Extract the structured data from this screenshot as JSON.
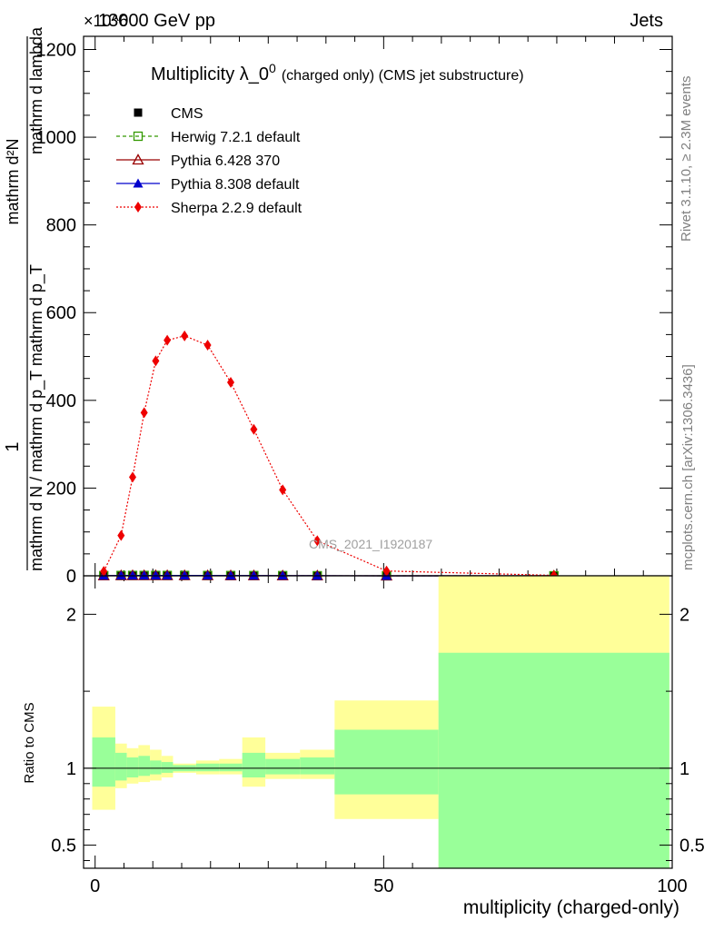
{
  "header": {
    "left_label": "13000 GeV pp",
    "right_label": "Jets",
    "exponent_label": "×10^6"
  },
  "side_labels": {
    "rivet": "Rivet 3.1.10, ≥ 2.3M events",
    "mcplots": "mcplots.cern.ch [arXiv:1306.3436]"
  },
  "watermark": "CMS_2021_I1920187",
  "chart_data": [
    {
      "type": "scatter",
      "panel": "main",
      "title_main": "Multiplicity λ_0",
      "title_sup": "0",
      "title_suffix": "(charged only) (CMS jet substructure)",
      "xlabel": "multiplicity (charged-only)",
      "ylabel_numerator": "1",
      "ylabel_denominator": "mathrm d N / mathrm d p_T mathrm d p_T",
      "ylabel_top": "mathrm d²N",
      "ylabel_top_sub": "mathrm d lambda",
      "xlim": [
        -2,
        100
      ],
      "ylim": [
        0,
        1230
      ],
      "x_ticks": [
        0,
        50,
        100
      ],
      "y_ticks": [
        0,
        200,
        400,
        600,
        800,
        1000,
        1200
      ],
      "legend_position": "top-left",
      "series": [
        {
          "name": "CMS",
          "color": "#000000",
          "marker": "filled-square",
          "x": [
            1.5,
            4.5,
            6.5,
            8.5,
            10.5,
            12.5,
            15.5,
            19.5,
            23.5,
            27.5,
            32.5,
            38.5,
            50.5,
            79.5
          ],
          "y": [
            0.4,
            0.7,
            0.8,
            0.8,
            0.8,
            0.8,
            0.8,
            0.7,
            0.6,
            0.5,
            0.4,
            0.2,
            0.05,
            0.01
          ]
        },
        {
          "name": "Herwig 7.2.1 default",
          "color": "#339900",
          "marker": "open-square",
          "line": "dashed",
          "x": [
            1.5,
            4.5,
            6.5,
            8.5,
            10.5,
            12.5,
            15.5,
            19.5,
            23.5,
            27.5,
            32.5,
            38.5,
            50.5,
            79.5
          ],
          "y": [
            0.4,
            0.7,
            0.8,
            0.8,
            0.8,
            0.8,
            0.8,
            0.7,
            0.6,
            0.5,
            0.4,
            0.2,
            0.05,
            0.01
          ]
        },
        {
          "name": "Pythia 6.428 370",
          "color": "#990000",
          "marker": "open-triangle",
          "line": "solid",
          "x": [
            1.5,
            4.5,
            6.5,
            8.5,
            10.5,
            12.5,
            15.5,
            19.5,
            23.5,
            27.5,
            32.5,
            38.5,
            50.5,
            79.5
          ],
          "y": [
            0.4,
            0.7,
            0.8,
            0.8,
            0.8,
            0.8,
            0.8,
            0.7,
            0.6,
            0.5,
            0.4,
            0.2,
            0.05,
            0.01
          ]
        },
        {
          "name": "Pythia 8.308 default",
          "color": "#0000cc",
          "marker": "filled-triangle",
          "line": "solid",
          "x": [
            1.5,
            4.5,
            6.5,
            8.5,
            10.5,
            12.5,
            15.5,
            19.5,
            23.5,
            27.5,
            32.5,
            38.5,
            50.5,
            79.5
          ],
          "y": [
            0.4,
            0.7,
            0.8,
            0.8,
            0.8,
            0.8,
            0.8,
            0.7,
            0.6,
            0.5,
            0.4,
            0.2,
            0.05,
            0.01
          ]
        },
        {
          "name": "Sherpa 2.2.9 default",
          "color": "#ee0000",
          "marker": "filled-diamond",
          "line": "dotted",
          "x": [
            1.5,
            4.5,
            6.5,
            8.5,
            10.5,
            12.5,
            15.5,
            19.5,
            23.5,
            27.5,
            32.5,
            38.5,
            50.5,
            79.5
          ],
          "y": [
            10,
            92,
            225,
            372,
            490,
            537,
            547,
            526,
            441,
            334,
            196,
            80,
            11,
            1
          ]
        }
      ]
    },
    {
      "type": "area",
      "panel": "ratio",
      "ylabel": "Ratio to CMS",
      "xlim": [
        -2,
        100
      ],
      "ylim": [
        0.35,
        2.25
      ],
      "y_ticks": [
        0.5,
        1,
        2
      ],
      "reference_line": 1,
      "bins": [
        {
          "x0": -0.5,
          "x1": 3.5,
          "inner": [
            0.88,
            1.2
          ],
          "outer": [
            0.73,
            1.4
          ]
        },
        {
          "x0": 3.5,
          "x1": 5.5,
          "inner": [
            0.92,
            1.1
          ],
          "outer": [
            0.87,
            1.16
          ]
        },
        {
          "x0": 5.5,
          "x1": 7.5,
          "inner": [
            0.94,
            1.07
          ],
          "outer": [
            0.9,
            1.13
          ]
        },
        {
          "x0": 7.5,
          "x1": 9.5,
          "inner": [
            0.95,
            1.08
          ],
          "outer": [
            0.91,
            1.15
          ]
        },
        {
          "x0": 9.5,
          "x1": 11.5,
          "inner": [
            0.96,
            1.05
          ],
          "outer": [
            0.92,
            1.12
          ]
        },
        {
          "x0": 11.5,
          "x1": 13.5,
          "inner": [
            0.97,
            1.04
          ],
          "outer": [
            0.94,
            1.08
          ]
        },
        {
          "x0": 13.5,
          "x1": 17.5,
          "inner": [
            0.98,
            1.02
          ],
          "outer": [
            0.97,
            1.03
          ]
        },
        {
          "x0": 17.5,
          "x1": 21.5,
          "inner": [
            0.98,
            1.03
          ],
          "outer": [
            0.96,
            1.05
          ]
        },
        {
          "x0": 21.5,
          "x1": 25.5,
          "inner": [
            0.98,
            1.03
          ],
          "outer": [
            0.96,
            1.06
          ]
        },
        {
          "x0": 25.5,
          "x1": 29.5,
          "inner": [
            0.94,
            1.1
          ],
          "outer": [
            0.88,
            1.2
          ]
        },
        {
          "x0": 29.5,
          "x1": 35.5,
          "inner": [
            0.96,
            1.06
          ],
          "outer": [
            0.93,
            1.1
          ]
        },
        {
          "x0": 35.5,
          "x1": 41.5,
          "inner": [
            0.96,
            1.07
          ],
          "outer": [
            0.93,
            1.12
          ]
        },
        {
          "x0": 41.5,
          "x1": 59.5,
          "inner": [
            0.83,
            1.25
          ],
          "outer": [
            0.67,
            1.44
          ]
        },
        {
          "x0": 59.5,
          "x1": 99.5,
          "inner": [
            0.35,
            1.75
          ],
          "outer": [
            0.35,
            2.3
          ]
        }
      ]
    }
  ],
  "colors": {
    "band_inner": "#99ff99",
    "band_outer": "#ffff99"
  }
}
